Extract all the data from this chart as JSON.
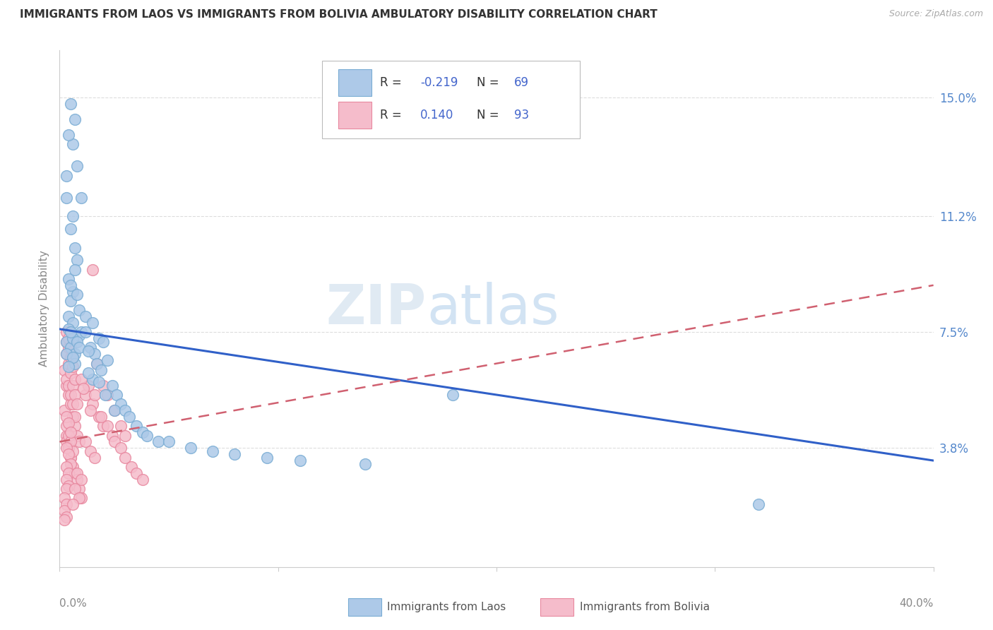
{
  "title": "IMMIGRANTS FROM LAOS VS IMMIGRANTS FROM BOLIVIA AMBULATORY DISABILITY CORRELATION CHART",
  "source": "Source: ZipAtlas.com",
  "ylabel": "Ambulatory Disability",
  "ytick_vals": [
    0.0,
    0.038,
    0.075,
    0.112,
    0.15
  ],
  "ytick_labels": [
    "",
    "3.8%",
    "7.5%",
    "11.2%",
    "15.0%"
  ],
  "xmin": 0.0,
  "xmax": 0.4,
  "ymin": 0.0,
  "ymax": 0.165,
  "laos_color": "#adc9e8",
  "laos_edge_color": "#7aadd4",
  "bolivia_color": "#f5bccb",
  "bolivia_edge_color": "#e8889f",
  "laos_line_color": "#3060c8",
  "bolivia_line_color": "#d06070",
  "R_laos": -0.219,
  "N_laos": 69,
  "R_bolivia": 0.14,
  "N_bolivia": 93,
  "laos_x": [
    0.005,
    0.007,
    0.006,
    0.008,
    0.01,
    0.004,
    0.003,
    0.006,
    0.005,
    0.007,
    0.008,
    0.004,
    0.006,
    0.005,
    0.009,
    0.003,
    0.007,
    0.005,
    0.008,
    0.004,
    0.006,
    0.01,
    0.003,
    0.005,
    0.007,
    0.009,
    0.004,
    0.006,
    0.005,
    0.008,
    0.003,
    0.007,
    0.009,
    0.006,
    0.004,
    0.012,
    0.015,
    0.012,
    0.018,
    0.014,
    0.016,
    0.02,
    0.013,
    0.017,
    0.022,
    0.019,
    0.015,
    0.024,
    0.013,
    0.018,
    0.021,
    0.026,
    0.028,
    0.025,
    0.03,
    0.032,
    0.035,
    0.038,
    0.04,
    0.045,
    0.05,
    0.06,
    0.07,
    0.08,
    0.095,
    0.11,
    0.14,
    0.32,
    0.18
  ],
  "laos_y": [
    0.148,
    0.143,
    0.135,
    0.128,
    0.118,
    0.138,
    0.125,
    0.112,
    0.108,
    0.102,
    0.098,
    0.092,
    0.088,
    0.085,
    0.082,
    0.118,
    0.095,
    0.09,
    0.087,
    0.08,
    0.078,
    0.075,
    0.072,
    0.07,
    0.068,
    0.074,
    0.076,
    0.073,
    0.075,
    0.072,
    0.068,
    0.065,
    0.07,
    0.067,
    0.064,
    0.08,
    0.078,
    0.075,
    0.073,
    0.07,
    0.068,
    0.072,
    0.069,
    0.065,
    0.066,
    0.063,
    0.06,
    0.058,
    0.062,
    0.059,
    0.055,
    0.055,
    0.052,
    0.05,
    0.05,
    0.048,
    0.045,
    0.043,
    0.042,
    0.04,
    0.04,
    0.038,
    0.037,
    0.036,
    0.035,
    0.034,
    0.033,
    0.02,
    0.055
  ],
  "bolivia_x": [
    0.002,
    0.003,
    0.004,
    0.005,
    0.006,
    0.007,
    0.008,
    0.009,
    0.01,
    0.003,
    0.004,
    0.005,
    0.006,
    0.007,
    0.008,
    0.009,
    0.002,
    0.003,
    0.004,
    0.005,
    0.006,
    0.007,
    0.003,
    0.004,
    0.005,
    0.006,
    0.007,
    0.008,
    0.003,
    0.004,
    0.005,
    0.006,
    0.007,
    0.003,
    0.004,
    0.005,
    0.006,
    0.003,
    0.004,
    0.005,
    0.003,
    0.004,
    0.005,
    0.006,
    0.003,
    0.004,
    0.005,
    0.003,
    0.004,
    0.005,
    0.003,
    0.004,
    0.003,
    0.004,
    0.003,
    0.002,
    0.003,
    0.002,
    0.003,
    0.002,
    0.012,
    0.015,
    0.018,
    0.02,
    0.013,
    0.016,
    0.014,
    0.01,
    0.011,
    0.022,
    0.019,
    0.024,
    0.025,
    0.028,
    0.03,
    0.033,
    0.035,
    0.038,
    0.015,
    0.017,
    0.02,
    0.022,
    0.025,
    0.028,
    0.03,
    0.012,
    0.014,
    0.016,
    0.008,
    0.01,
    0.007,
    0.009,
    0.006
  ],
  "bolivia_y": [
    0.05,
    0.042,
    0.038,
    0.035,
    0.032,
    0.03,
    0.028,
    0.025,
    0.022,
    0.058,
    0.055,
    0.052,
    0.048,
    0.045,
    0.042,
    0.04,
    0.063,
    0.06,
    0.058,
    0.055,
    0.052,
    0.048,
    0.068,
    0.065,
    0.062,
    0.058,
    0.055,
    0.052,
    0.072,
    0.07,
    0.067,
    0.064,
    0.06,
    0.075,
    0.073,
    0.07,
    0.067,
    0.04,
    0.038,
    0.035,
    0.045,
    0.042,
    0.04,
    0.037,
    0.048,
    0.046,
    0.043,
    0.038,
    0.036,
    0.033,
    0.032,
    0.03,
    0.028,
    0.026,
    0.025,
    0.022,
    0.02,
    0.018,
    0.016,
    0.015,
    0.055,
    0.052,
    0.048,
    0.045,
    0.058,
    0.055,
    0.05,
    0.06,
    0.057,
    0.045,
    0.048,
    0.042,
    0.04,
    0.038,
    0.035,
    0.032,
    0.03,
    0.028,
    0.095,
    0.065,
    0.058,
    0.055,
    0.05,
    0.045,
    0.042,
    0.04,
    0.037,
    0.035,
    0.03,
    0.028,
    0.025,
    0.022,
    0.02
  ],
  "laos_trendline_x": [
    0.0,
    0.4
  ],
  "laos_trendline_y": [
    0.076,
    0.034
  ],
  "bolivia_trendline_x": [
    0.0,
    0.4
  ],
  "bolivia_trendline_y": [
    0.04,
    0.09
  ]
}
